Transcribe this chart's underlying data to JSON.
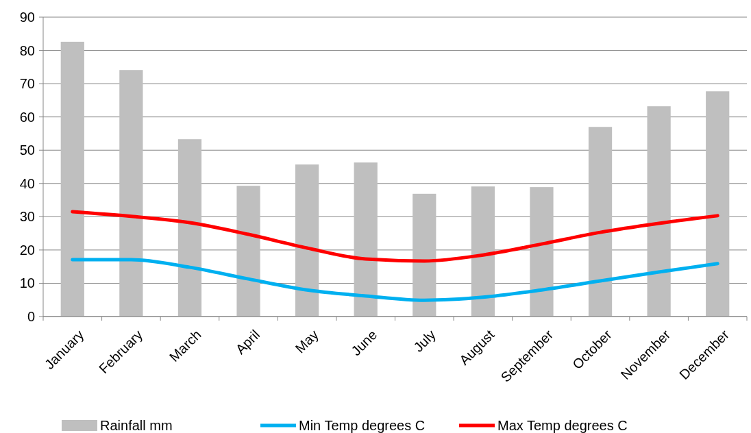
{
  "chart_data": {
    "type": "bar",
    "categories": [
      "January",
      "February",
      "March",
      "April",
      "May",
      "June",
      "July",
      "August",
      "September",
      "October",
      "November",
      "December"
    ],
    "series": [
      {
        "name": "Rainfall mm",
        "color": "#bfbfbf",
        "values": [
          82.6,
          74.1,
          53.3,
          39.3,
          45.7,
          46.3,
          36.9,
          39.1,
          38.9,
          57.0,
          63.2,
          67.7
        ]
      },
      {
        "name": "Min Temp degrees C",
        "type": "line",
        "color": "#00b0f0",
        "values": [
          17.1,
          17.1,
          14.8,
          11.3,
          8.0,
          6.2,
          4.9,
          5.8,
          8.0,
          10.7,
          13.4,
          15.9
        ]
      },
      {
        "name": "Max Temp degrees C",
        "type": "line",
        "color": "#ff0000",
        "values": [
          31.5,
          30.1,
          28.2,
          24.7,
          20.6,
          17.3,
          16.7,
          18.5,
          21.8,
          25.3,
          28.0,
          30.3
        ]
      }
    ],
    "ylim": [
      0,
      90
    ],
    "yticks": [
      0,
      10,
      20,
      30,
      40,
      50,
      60,
      70,
      80,
      90
    ],
    "grid": "y",
    "legend": "bottom",
    "marker": "none",
    "line_style": "solid"
  }
}
